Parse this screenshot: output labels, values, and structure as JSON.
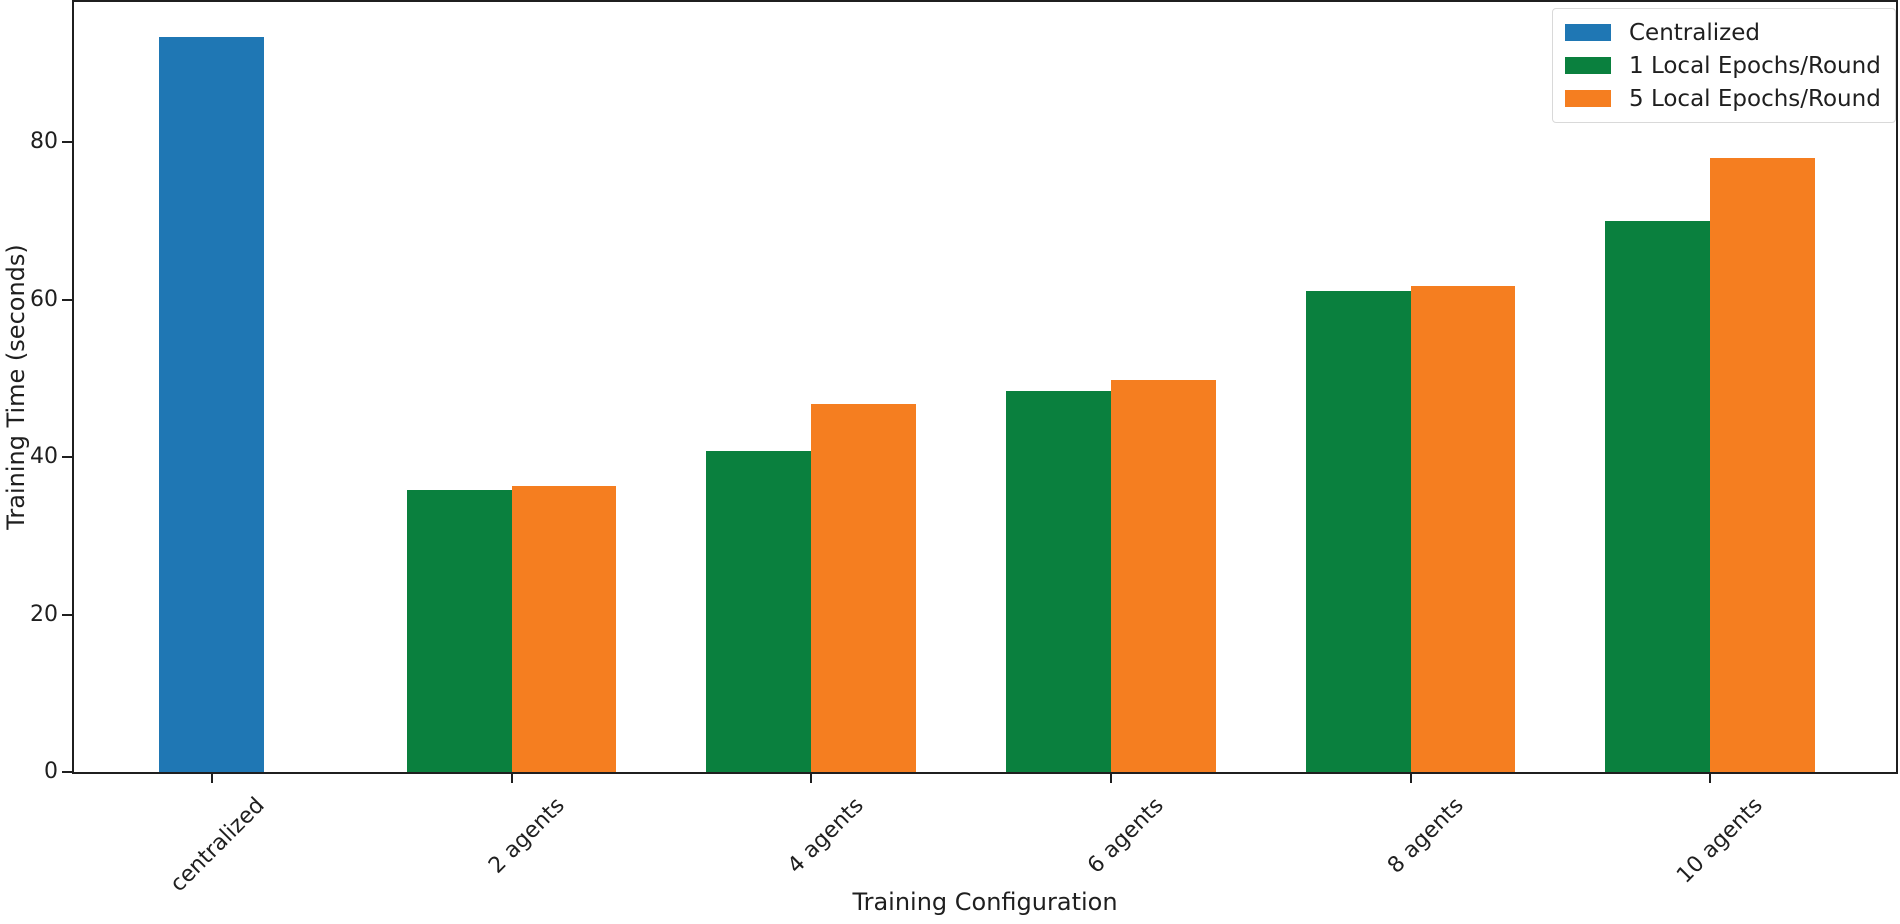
{
  "chart_data": {
    "type": "bar",
    "title": "",
    "xlabel": "Training Configuration",
    "ylabel": "Training Time (seconds)",
    "categories": [
      "centralized",
      "2 agents",
      "4 agents",
      "6 agents",
      "8 agents",
      "10 agents"
    ],
    "series": [
      {
        "name": "Centralized",
        "color": "#1f77b4",
        "values": [
          93.3,
          null,
          null,
          null,
          null,
          null
        ]
      },
      {
        "name": "1 Local Epochs/Round",
        "color": "#0a803e",
        "values": [
          null,
          35.8,
          40.8,
          48.4,
          61.1,
          70.0
        ]
      },
      {
        "name": "5 Local Epochs/Round",
        "color": "#f57e20",
        "values": [
          null,
          36.3,
          46.8,
          49.8,
          61.7,
          78.0
        ]
      }
    ],
    "yticks": [
      0,
      20,
      40,
      60,
      80
    ],
    "ylim": [
      0,
      97.8
    ],
    "xlim": [
      -0.46,
      5.62
    ],
    "bar_width": 0.35,
    "grid": false,
    "legend_position": "upper right"
  },
  "colors": {
    "spine": "#1f1f1f",
    "text": "#1f1f1f",
    "legend_border": "#d9d9d9",
    "background": "#ffffff"
  }
}
